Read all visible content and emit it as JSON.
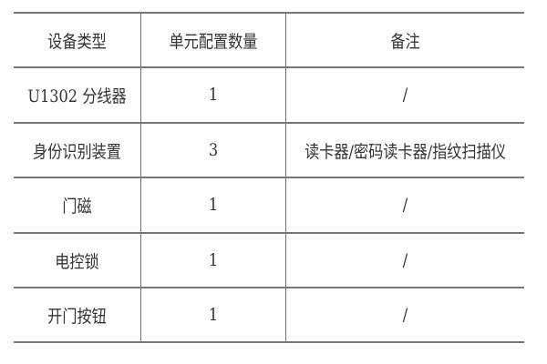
{
  "table": {
    "headers": [
      "设备类型",
      "单元配置数量",
      "备注"
    ],
    "rows": [
      [
        "U1302 分线器",
        "1",
        "/"
      ],
      [
        "身份识别装置",
        "3",
        "读卡器/密码读卡器/指纹扫描仪"
      ],
      [
        "门磁",
        "1",
        "/"
      ],
      [
        "电控锁",
        "1",
        "/"
      ],
      [
        "开门按钮",
        "1",
        "/"
      ]
    ]
  }
}
